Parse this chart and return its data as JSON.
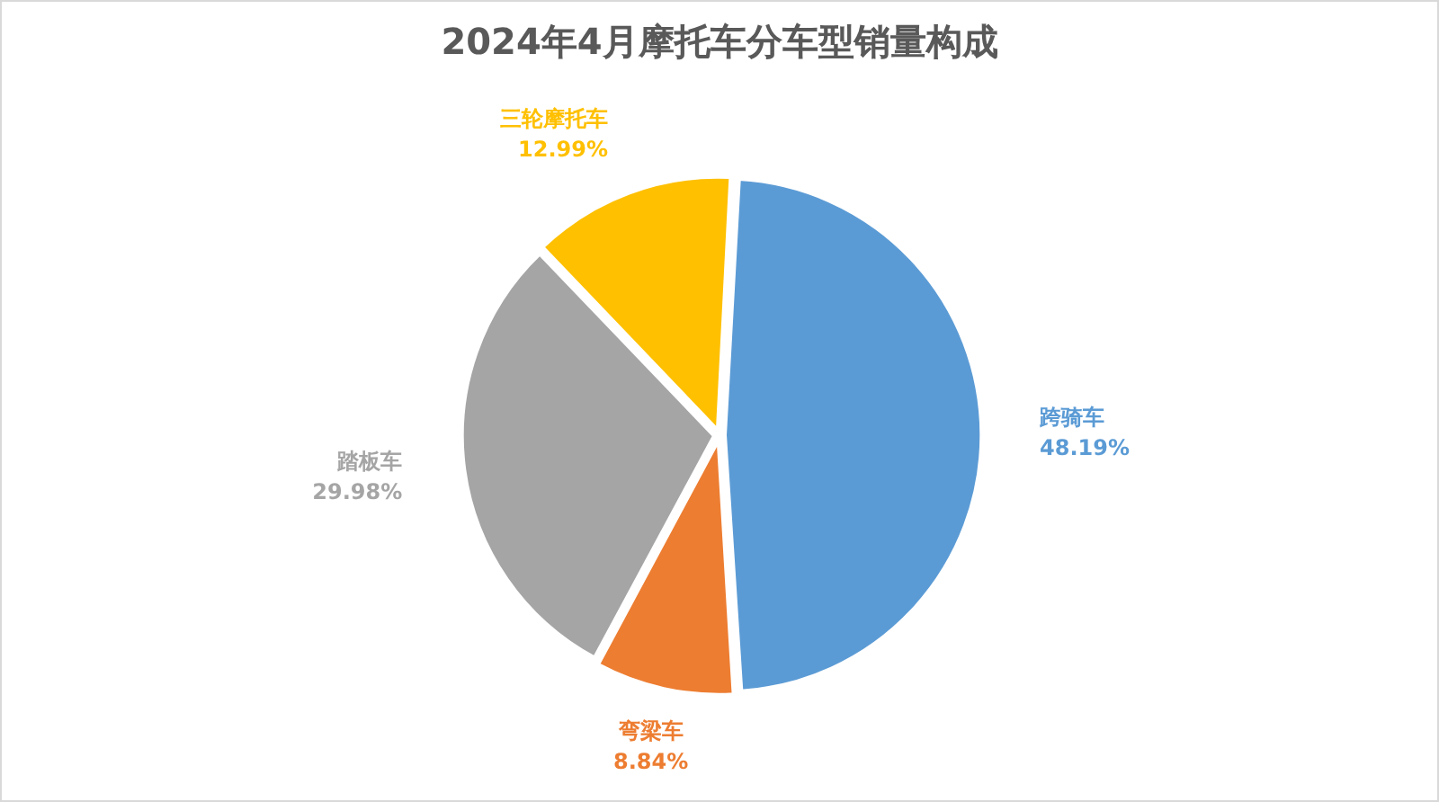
{
  "chart_data": {
    "type": "pie",
    "title": "2024年4月摩托车分车型销量构成",
    "categories": [
      "跨骑车",
      "弯梁车",
      "踏板车",
      "三轮摩托车"
    ],
    "values": [
      48.19,
      8.84,
      29.98,
      12.99
    ],
    "colors": [
      "#5b9bd5",
      "#ed7d31",
      "#a5a5a5",
      "#ffc000"
    ],
    "value_labels": [
      "48.19%",
      "8.84%",
      "29.98%",
      "12.99%"
    ]
  }
}
